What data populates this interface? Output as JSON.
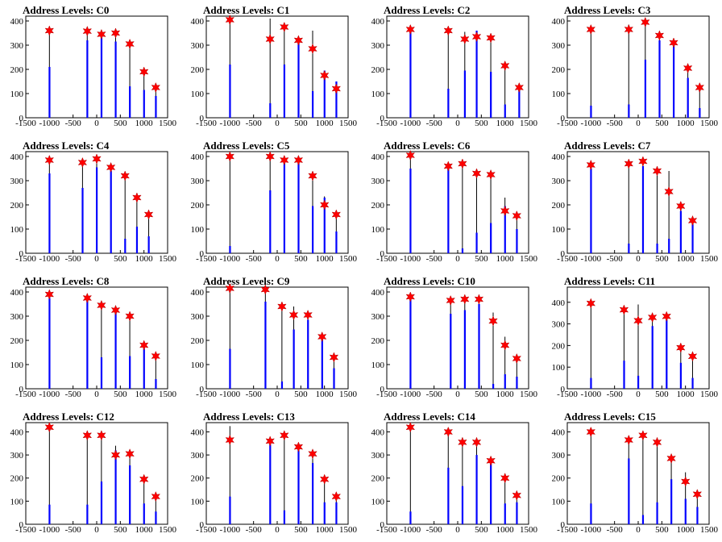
{
  "chart_data": [
    {
      "type": "bar",
      "title": "Address Levels: C0",
      "xlim": [
        -1500,
        1500
      ],
      "ylim": [
        0,
        420
      ],
      "xticks": [
        -1500,
        -1000,
        -500,
        0,
        500,
        1000,
        1500
      ],
      "yticks": [
        0,
        100,
        200,
        300,
        400
      ],
      "stem_color": "#000000",
      "fill_color": "#0000ff",
      "marker_color": "#ff0000",
      "spikes": [
        {
          "x": -1000,
          "y": 360,
          "fill": 210
        },
        {
          "x": -200,
          "y": 358,
          "fill": 320
        },
        {
          "x": 100,
          "y": 345,
          "fill": 340
        },
        {
          "x": 400,
          "y": 350,
          "fill": 315
        },
        {
          "x": 700,
          "y": 305,
          "fill": 130
        },
        {
          "x": 1000,
          "y": 190,
          "fill": 115
        },
        {
          "x": 1250,
          "y": 125,
          "fill": 90
        }
      ]
    },
    {
      "type": "bar",
      "title": "Address Levels: C1",
      "xlim": [
        -1500,
        1500
      ],
      "ylim": [
        0,
        420
      ],
      "xticks": [
        -1500,
        -1000,
        -500,
        0,
        500,
        1000,
        1500
      ],
      "yticks": [
        0,
        100,
        200,
        300,
        400
      ],
      "spikes": [
        {
          "x": -1000,
          "y": 405,
          "fill": 220
        },
        {
          "x": -150,
          "y": 325,
          "fill": 60,
          "stem": 410
        },
        {
          "x": 150,
          "y": 375,
          "fill": 220
        },
        {
          "x": 450,
          "y": 320,
          "fill": 310
        },
        {
          "x": 750,
          "y": 285,
          "fill": 110,
          "stem": 360
        },
        {
          "x": 1000,
          "y": 175,
          "fill": 195
        },
        {
          "x": 1250,
          "y": 120,
          "fill": 150
        }
      ]
    },
    {
      "type": "bar",
      "title": "Address Levels: C2",
      "xlim": [
        -1500,
        1500
      ],
      "ylim": [
        0,
        420
      ],
      "xticks": [
        -1500,
        -1000,
        -500,
        0,
        500,
        1000,
        1500
      ],
      "yticks": [
        0,
        100,
        200,
        300,
        400
      ],
      "spikes": [
        {
          "x": -1000,
          "y": 365,
          "fill": 355
        },
        {
          "x": -200,
          "y": 360,
          "fill": 120
        },
        {
          "x": 150,
          "y": 325,
          "fill": 195,
          "stem": 355
        },
        {
          "x": 400,
          "y": 335,
          "fill": 360
        },
        {
          "x": 700,
          "y": 330,
          "fill": 190
        },
        {
          "x": 1000,
          "y": 215,
          "fill": 55
        },
        {
          "x": 1300,
          "y": 125,
          "fill": 120
        }
      ]
    },
    {
      "type": "bar",
      "title": "Address Levels: C3",
      "xlim": [
        -1500,
        1500
      ],
      "ylim": [
        0,
        420
      ],
      "xticks": [
        -1500,
        -1000,
        -500,
        0,
        500,
        1000,
        1500
      ],
      "yticks": [
        0,
        100,
        200,
        300,
        400
      ],
      "spikes": [
        {
          "x": -1000,
          "y": 365,
          "fill": 50
        },
        {
          "x": -200,
          "y": 365,
          "fill": 55,
          "stem": 385
        },
        {
          "x": 150,
          "y": 395,
          "fill": 240
        },
        {
          "x": 450,
          "y": 340,
          "fill": 320
        },
        {
          "x": 750,
          "y": 310,
          "fill": 300
        },
        {
          "x": 1050,
          "y": 205,
          "fill": 165
        },
        {
          "x": 1300,
          "y": 125,
          "fill": 40
        }
      ]
    },
    {
      "type": "bar",
      "title": "Address Levels: C4",
      "xlim": [
        -1500,
        1500
      ],
      "ylim": [
        0,
        420
      ],
      "xticks": [
        -1500,
        -1000,
        -500,
        0,
        500,
        1000,
        1500
      ],
      "yticks": [
        0,
        100,
        200,
        300,
        400
      ],
      "spikes": [
        {
          "x": -1000,
          "y": 385,
          "fill": 330
        },
        {
          "x": -300,
          "y": 375,
          "fill": 270
        },
        {
          "x": 0,
          "y": 390,
          "fill": 355
        },
        {
          "x": 300,
          "y": 355,
          "fill": 340
        },
        {
          "x": 600,
          "y": 320,
          "fill": 60
        },
        {
          "x": 850,
          "y": 230,
          "fill": 110
        },
        {
          "x": 1100,
          "y": 160,
          "fill": 70
        }
      ]
    },
    {
      "type": "bar",
      "title": "Address Levels: C5",
      "xlim": [
        -1500,
        1500
      ],
      "ylim": [
        0,
        420
      ],
      "xticks": [
        -1500,
        -1000,
        -500,
        0,
        500,
        1000,
        1500
      ],
      "yticks": [
        0,
        100,
        200,
        300,
        400
      ],
      "spikes": [
        {
          "x": -1000,
          "y": 400,
          "fill": 30
        },
        {
          "x": -150,
          "y": 400,
          "fill": 260
        },
        {
          "x": 150,
          "y": 385,
          "fill": 380
        },
        {
          "x": 450,
          "y": 385,
          "fill": 375
        },
        {
          "x": 750,
          "y": 320,
          "fill": 195
        },
        {
          "x": 1000,
          "y": 200,
          "fill": 230,
          "stem": 235
        },
        {
          "x": 1250,
          "y": 160,
          "fill": 90
        }
      ]
    },
    {
      "type": "bar",
      "title": "Address Levels: C6",
      "xlim": [
        -1500,
        1500
      ],
      "ylim": [
        0,
        420
      ],
      "xticks": [
        -1500,
        -1000,
        -500,
        0,
        500,
        1000,
        1500
      ],
      "yticks": [
        0,
        100,
        200,
        300,
        400
      ],
      "spikes": [
        {
          "x": -1000,
          "y": 405,
          "fill": 350
        },
        {
          "x": -200,
          "y": 360,
          "fill": 355
        },
        {
          "x": 100,
          "y": 370,
          "fill": 20
        },
        {
          "x": 400,
          "y": 330,
          "fill": 85
        },
        {
          "x": 700,
          "y": 325,
          "fill": 125
        },
        {
          "x": 1000,
          "y": 175,
          "fill": 195,
          "stem": 230
        },
        {
          "x": 1250,
          "y": 155,
          "fill": 100
        }
      ]
    },
    {
      "type": "bar",
      "title": "Address Levels: C7",
      "xlim": [
        -1500,
        1500
      ],
      "ylim": [
        0,
        420
      ],
      "xticks": [
        -1500,
        -1000,
        -500,
        0,
        500,
        1000,
        1500
      ],
      "yticks": [
        0,
        100,
        200,
        300,
        400
      ],
      "spikes": [
        {
          "x": -1000,
          "y": 365,
          "fill": 350
        },
        {
          "x": -200,
          "y": 370,
          "fill": 40
        },
        {
          "x": 100,
          "y": 380,
          "fill": 360
        },
        {
          "x": 400,
          "y": 340,
          "fill": 40
        },
        {
          "x": 650,
          "y": 255,
          "fill": 60,
          "stem": 340
        },
        {
          "x": 900,
          "y": 195,
          "fill": 175
        },
        {
          "x": 1150,
          "y": 135,
          "fill": 120
        }
      ]
    },
    {
      "type": "bar",
      "title": "Address Levels: C8",
      "xlim": [
        -1500,
        1500
      ],
      "ylim": [
        0,
        420
      ],
      "xticks": [
        -1500,
        -1000,
        -500,
        0,
        500,
        1000,
        1500
      ],
      "yticks": [
        0,
        100,
        200,
        300,
        400
      ],
      "spikes": [
        {
          "x": -1000,
          "y": 390,
          "fill": 375
        },
        {
          "x": -200,
          "y": 375,
          "fill": 370
        },
        {
          "x": 100,
          "y": 345,
          "fill": 130
        },
        {
          "x": 400,
          "y": 325,
          "fill": 320
        },
        {
          "x": 700,
          "y": 300,
          "fill": 135
        },
        {
          "x": 1000,
          "y": 180,
          "fill": 165,
          "stem": 195
        },
        {
          "x": 1250,
          "y": 135,
          "fill": 40
        }
      ]
    },
    {
      "type": "bar",
      "title": "Address Levels: C9",
      "xlim": [
        -1500,
        1500
      ],
      "ylim": [
        0,
        420
      ],
      "xticks": [
        -1500,
        -1000,
        -500,
        0,
        500,
        1000,
        1500
      ],
      "yticks": [
        0,
        100,
        200,
        300,
        400
      ],
      "spikes": [
        {
          "x": -1000,
          "y": 415,
          "fill": 165
        },
        {
          "x": -250,
          "y": 410,
          "fill": 360
        },
        {
          "x": 100,
          "y": 340,
          "fill": 30
        },
        {
          "x": 350,
          "y": 305,
          "fill": 245,
          "stem": 340
        },
        {
          "x": 650,
          "y": 305,
          "fill": 285
        },
        {
          "x": 950,
          "y": 215,
          "fill": 205
        },
        {
          "x": 1200,
          "y": 130,
          "fill": 85
        }
      ]
    },
    {
      "type": "bar",
      "title": "Address Levels: C10",
      "xlim": [
        -1500,
        1500
      ],
      "ylim": [
        0,
        420
      ],
      "xticks": [
        -1500,
        -1000,
        -500,
        0,
        500,
        1000,
        1500
      ],
      "yticks": [
        0,
        100,
        200,
        300,
        400
      ],
      "spikes": [
        {
          "x": -1000,
          "y": 380,
          "fill": 370
        },
        {
          "x": -150,
          "y": 365,
          "fill": 310
        },
        {
          "x": 150,
          "y": 370,
          "fill": 325
        },
        {
          "x": 450,
          "y": 370,
          "fill": 350
        },
        {
          "x": 750,
          "y": 280,
          "fill": 20,
          "stem": 315
        },
        {
          "x": 1000,
          "y": 180,
          "fill": 60,
          "stem": 215
        },
        {
          "x": 1250,
          "y": 125,
          "fill": 50
        }
      ]
    },
    {
      "type": "bar",
      "title": "Address Levels: C11",
      "xlim": [
        -1500,
        1500
      ],
      "ylim": [
        0,
        470
      ],
      "xticks": [
        -1500,
        -1000,
        -500,
        0,
        500,
        1000,
        1500
      ],
      "yticks": [
        0,
        100,
        200,
        300,
        400
      ],
      "spikes": [
        {
          "x": -1000,
          "y": 395,
          "fill": 50
        },
        {
          "x": -300,
          "y": 365,
          "fill": 130
        },
        {
          "x": 0,
          "y": 315,
          "fill": 60,
          "stem": 390
        },
        {
          "x": 300,
          "y": 330,
          "fill": 290
        },
        {
          "x": 600,
          "y": 335,
          "fill": 320
        },
        {
          "x": 900,
          "y": 190,
          "fill": 120
        },
        {
          "x": 1150,
          "y": 150,
          "fill": 50
        }
      ]
    },
    {
      "type": "bar",
      "title": "Address Levels: C12",
      "xlim": [
        -1500,
        1500
      ],
      "ylim": [
        0,
        440
      ],
      "xticks": [
        -1500,
        -1000,
        -500,
        0,
        500,
        1000,
        1500
      ],
      "yticks": [
        0,
        100,
        200,
        300,
        400
      ],
      "spikes": [
        {
          "x": -1000,
          "y": 420,
          "fill": 85
        },
        {
          "x": -200,
          "y": 385,
          "fill": 85
        },
        {
          "x": 100,
          "y": 385,
          "fill": 185
        },
        {
          "x": 400,
          "y": 300,
          "fill": 320,
          "stem": 340
        },
        {
          "x": 700,
          "y": 305,
          "fill": 255
        },
        {
          "x": 1000,
          "y": 195,
          "fill": 90
        },
        {
          "x": 1250,
          "y": 120,
          "fill": 55
        }
      ]
    },
    {
      "type": "bar",
      "title": "Address Levels: C13",
      "xlim": [
        -1500,
        1500
      ],
      "ylim": [
        0,
        440
      ],
      "xticks": [
        -1500,
        -1000,
        -500,
        0,
        500,
        1000,
        1500
      ],
      "yticks": [
        0,
        100,
        200,
        300,
        400
      ],
      "spikes": [
        {
          "x": -1000,
          "y": 365,
          "fill": 120,
          "stem": 425
        },
        {
          "x": -150,
          "y": 360,
          "fill": 345
        },
        {
          "x": 150,
          "y": 385,
          "fill": 60
        },
        {
          "x": 450,
          "y": 335,
          "fill": 320
        },
        {
          "x": 750,
          "y": 305,
          "fill": 265
        },
        {
          "x": 1000,
          "y": 195,
          "fill": 95
        },
        {
          "x": 1250,
          "y": 120,
          "fill": 95
        }
      ]
    },
    {
      "type": "bar",
      "title": "Address Levels: C14",
      "xlim": [
        -1500,
        1500
      ],
      "ylim": [
        0,
        440
      ],
      "xticks": [
        -1500,
        -1000,
        -500,
        0,
        500,
        1000,
        1500
      ],
      "yticks": [
        0,
        100,
        200,
        300,
        400
      ],
      "spikes": [
        {
          "x": -1000,
          "y": 420,
          "fill": 55
        },
        {
          "x": -200,
          "y": 400,
          "fill": 245
        },
        {
          "x": 100,
          "y": 355,
          "fill": 165,
          "stem": 375
        },
        {
          "x": 400,
          "y": 355,
          "fill": 300
        },
        {
          "x": 700,
          "y": 275,
          "fill": 265
        },
        {
          "x": 1000,
          "y": 200,
          "fill": 90
        },
        {
          "x": 1250,
          "y": 125,
          "fill": 95
        }
      ]
    },
    {
      "type": "bar",
      "title": "Address Levels: C15",
      "xlim": [
        -1500,
        1500
      ],
      "ylim": [
        0,
        440
      ],
      "xticks": [
        -1500,
        -1000,
        -500,
        0,
        500,
        1000,
        1500
      ],
      "yticks": [
        0,
        100,
        200,
        300,
        400
      ],
      "spikes": [
        {
          "x": -1000,
          "y": 400,
          "fill": 90
        },
        {
          "x": -200,
          "y": 365,
          "fill": 285
        },
        {
          "x": 100,
          "y": 385,
          "fill": 40
        },
        {
          "x": 400,
          "y": 355,
          "fill": 95
        },
        {
          "x": 700,
          "y": 285,
          "fill": 195
        },
        {
          "x": 1000,
          "y": 185,
          "fill": 110,
          "stem": 225
        },
        {
          "x": 1250,
          "y": 130,
          "fill": 75
        }
      ]
    }
  ]
}
